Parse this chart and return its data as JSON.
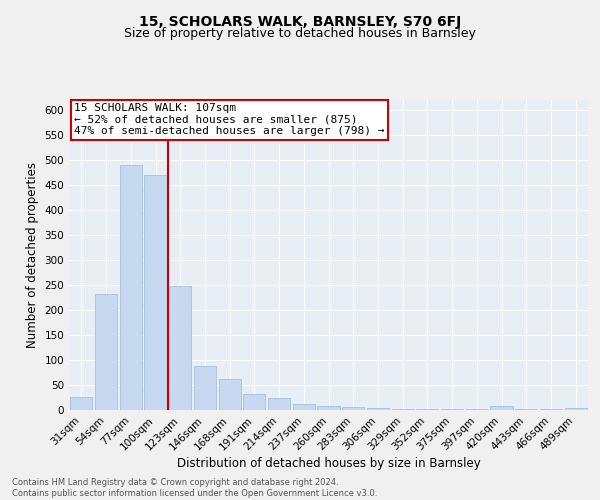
{
  "title": "15, SCHOLARS WALK, BARNSLEY, S70 6FJ",
  "subtitle": "Size of property relative to detached houses in Barnsley",
  "xlabel": "Distribution of detached houses by size in Barnsley",
  "ylabel": "Number of detached properties",
  "footnote1": "Contains HM Land Registry data © Crown copyright and database right 2024.",
  "footnote2": "Contains public sector information licensed under the Open Government Licence v3.0.",
  "categories": [
    "31sqm",
    "54sqm",
    "77sqm",
    "100sqm",
    "123sqm",
    "146sqm",
    "168sqm",
    "191sqm",
    "214sqm",
    "237sqm",
    "260sqm",
    "283sqm",
    "306sqm",
    "329sqm",
    "352sqm",
    "375sqm",
    "397sqm",
    "420sqm",
    "443sqm",
    "466sqm",
    "489sqm"
  ],
  "values": [
    26,
    233,
    490,
    470,
    248,
    89,
    62,
    32,
    25,
    13,
    9,
    7,
    5,
    3,
    2,
    2,
    2,
    8,
    2,
    2,
    5
  ],
  "bar_color": "#c6d9f0",
  "bar_edge_color": "#9bbcd8",
  "highlight_annotation": "15 SCHOLARS WALK: 107sqm",
  "annotation_line1": "← 52% of detached houses are smaller (875)",
  "annotation_line2": "47% of semi-detached houses are larger (798) →",
  "annotation_box_color": "#ffffff",
  "annotation_box_edge": "#cc0000",
  "vline_color": "#cc0000",
  "ylim": [
    0,
    620
  ],
  "yticks": [
    0,
    50,
    100,
    150,
    200,
    250,
    300,
    350,
    400,
    450,
    500,
    550,
    600
  ],
  "bg_color": "#e8eef5",
  "grid_color": "#ffffff",
  "title_fontsize": 10,
  "subtitle_fontsize": 9,
  "axis_label_fontsize": 8.5,
  "tick_fontsize": 7.5,
  "footnote_fontsize": 6,
  "annot_fontsize": 8
}
